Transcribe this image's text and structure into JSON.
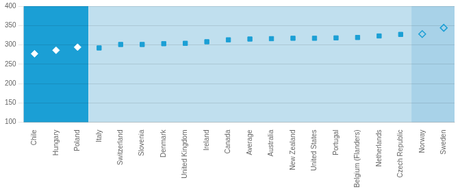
{
  "chart_data": {
    "type": "scatter",
    "categories": [
      "Chile",
      "Hungary",
      "Poland",
      "Italy",
      "Switzerland",
      "Slovenia",
      "Denmark",
      "United Kingdom",
      "Ireland",
      "Canada",
      "Average",
      "Australia",
      "New Zealand",
      "United States",
      "Portugal",
      "Belgium (Flanders)",
      "Netherlands",
      "Czech Republic",
      "Norway",
      "Sweden"
    ],
    "series": [
      {
        "color": "#ffffff",
        "marker": "diamond",
        "values": [
          277,
          286,
          294,
          null,
          null,
          null,
          null,
          null,
          null,
          null,
          null,
          null,
          null,
          null,
          null,
          null,
          null,
          null,
          null,
          null
        ]
      },
      {
        "color": "#1b9fd5",
        "marker": "square",
        "values": [
          null,
          null,
          null,
          292,
          301,
          301,
          303,
          304,
          308,
          313,
          315,
          316,
          317,
          317,
          318,
          319,
          323,
          327,
          null,
          null
        ]
      },
      {
        "color": "#1b9fd5",
        "marker": "open_diamond",
        "values": [
          null,
          null,
          null,
          null,
          null,
          null,
          null,
          null,
          null,
          null,
          null,
          null,
          null,
          null,
          null,
          null,
          null,
          null,
          328,
          344
        ]
      }
    ],
    "ylim": [
      100,
      400
    ],
    "yticks": [
      100,
      150,
      200,
      250,
      300,
      350,
      400
    ],
    "grid": true
  }
}
